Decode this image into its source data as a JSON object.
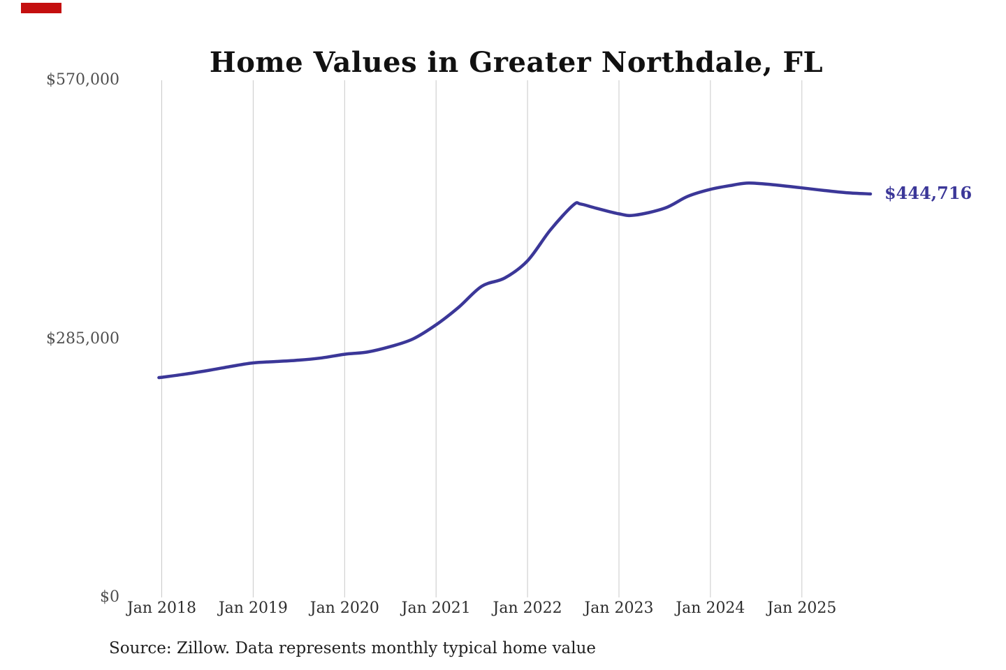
{
  "artifact": {
    "red_marker_color": "#c40f0f"
  },
  "chart_data": {
    "type": "line",
    "title": "Home Values in Greater Northdale, FL",
    "source_note": "Source: Zillow. Data represents monthly typical home value",
    "end_label": "$444,716",
    "end_value": 444716,
    "ylim": [
      0,
      570000
    ],
    "grid": "vertical-only",
    "legend": "none",
    "x_ticks": [
      "Jan 2018",
      "Jan 2019",
      "Jan 2020",
      "Jan 2021",
      "Jan 2022",
      "Jan 2023",
      "Jan 2024",
      "Jan 2025"
    ],
    "y_ticks": [
      {
        "label": "$570,000",
        "value": 570000
      },
      {
        "label": "$285,000",
        "value": 285000
      },
      {
        "label": "$0",
        "value": 0
      }
    ],
    "series": [
      {
        "name": "Monthly typical home value",
        "points": [
          [
            2017.97,
            242300
          ],
          [
            2018.0,
            242600
          ],
          [
            2018.25,
            246000
          ],
          [
            2018.5,
            250000
          ],
          [
            2018.75,
            254500
          ],
          [
            2019.0,
            258500
          ],
          [
            2019.25,
            260000
          ],
          [
            2019.5,
            261500
          ],
          [
            2019.75,
            264000
          ],
          [
            2020.0,
            268000
          ],
          [
            2020.25,
            270500
          ],
          [
            2020.5,
            276500
          ],
          [
            2020.75,
            285000
          ],
          [
            2021.0,
            300500
          ],
          [
            2021.25,
            320000
          ],
          [
            2021.5,
            343000
          ],
          [
            2021.75,
            352000
          ],
          [
            2022.0,
            371000
          ],
          [
            2022.25,
            405000
          ],
          [
            2022.5,
            432500
          ],
          [
            2022.58,
            433600
          ],
          [
            2022.75,
            429000
          ],
          [
            2023.0,
            422800
          ],
          [
            2023.17,
            421300
          ],
          [
            2023.5,
            429000
          ],
          [
            2023.75,
            442000
          ],
          [
            2024.0,
            449800
          ],
          [
            2024.25,
            454500
          ],
          [
            2024.42,
            456800
          ],
          [
            2024.67,
            455000
          ],
          [
            2025.0,
            451400
          ],
          [
            2025.25,
            448500
          ],
          [
            2025.5,
            446000
          ],
          [
            2025.75,
            444716
          ]
        ]
      }
    ],
    "colors": {
      "line": "#3b3798",
      "end_label": "#3b3798",
      "grid": "#c9c9c9",
      "y_tick": "#4f4f4f",
      "x_tick": "#2e2e2e",
      "title": "#111111",
      "source": "#1f1f1f"
    }
  }
}
